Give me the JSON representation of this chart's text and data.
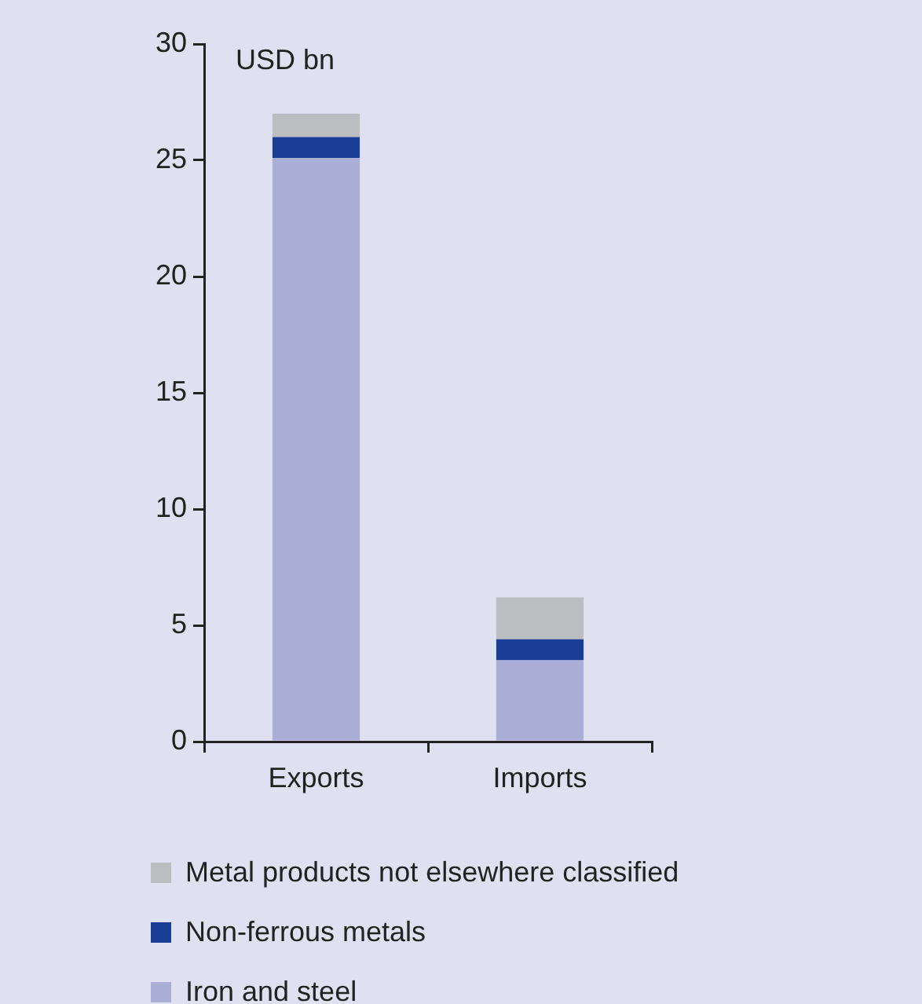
{
  "chart_data": {
    "type": "bar",
    "stacked": true,
    "ylabel": "USD bn",
    "categories": [
      "Exports",
      "Imports"
    ],
    "series": [
      {
        "name": "Iron and steel",
        "color": "#aaaed6",
        "values": [
          25.1,
          3.5
        ]
      },
      {
        "name": "Non-ferrous metals",
        "color": "#1a3d96",
        "values": [
          0.9,
          0.9
        ]
      },
      {
        "name": "Metal products not elsewhere classified",
        "color": "#bcbdc0",
        "values": [
          1.0,
          1.8
        ]
      }
    ],
    "ylim": [
      0,
      30
    ],
    "yticks": [
      0,
      5,
      10,
      15,
      20,
      25,
      30
    ],
    "grid": false,
    "legend": "bottom"
  }
}
